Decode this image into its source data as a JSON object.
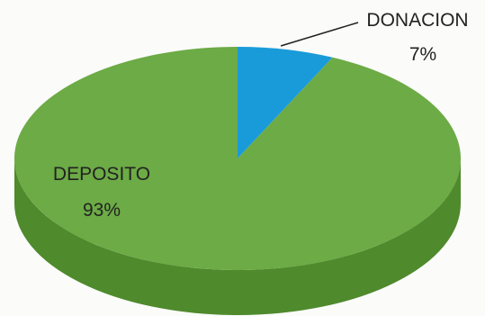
{
  "chart_data": {
    "type": "pie",
    "style": "3d",
    "slices": [
      {
        "label": "DONACION",
        "percent_label": "7%",
        "value": 7,
        "color": "#1a9bd9"
      },
      {
        "label": "DEPOSITO",
        "percent_label": "93%",
        "value": 93,
        "color": "#6cab45"
      }
    ],
    "legend": "none",
    "colors": {
      "side_shade": "#4f8a2c",
      "leader_line": "#222222"
    }
  }
}
